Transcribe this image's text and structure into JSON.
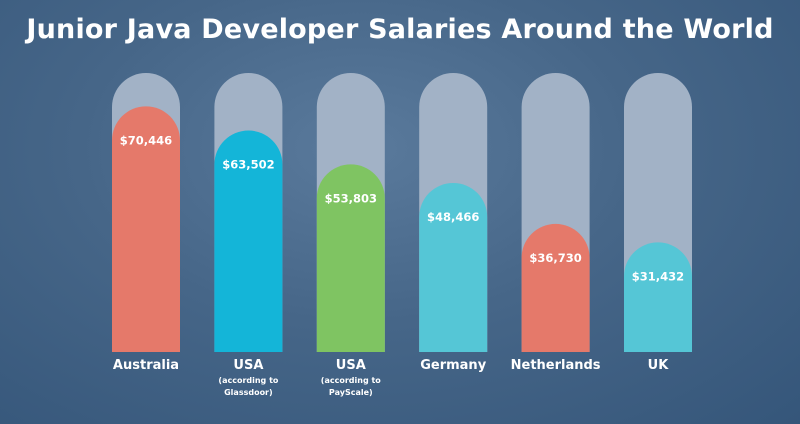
{
  "chart_data": {
    "type": "bar",
    "title": "Junior Java Developer Salaries Around the World",
    "categories": [
      {
        "label": "Australia",
        "sublines": []
      },
      {
        "label": "USA",
        "sublines": [
          "(according to",
          "Glassdoor)"
        ]
      },
      {
        "label": "USA",
        "sublines": [
          "(according to",
          "PayScale)"
        ]
      },
      {
        "label": "Germany",
        "sublines": []
      },
      {
        "label": "Netherlands",
        "sublines": []
      },
      {
        "label": "UK",
        "sublines": []
      }
    ],
    "values": [
      70446,
      63502,
      53803,
      48466,
      36730,
      31432
    ],
    "value_labels": [
      "$70,446",
      "$63,502",
      "$53,803",
      "$48,466",
      "$36,730",
      "$31,432"
    ],
    "ylim": [
      0,
      80000
    ],
    "grid": false,
    "colors": {
      "track": "#a2b2c6",
      "bars": [
        "#e5796a",
        "#14b5d8",
        "#7fc462",
        "#55c6d6",
        "#e5796a",
        "#55c6d6"
      ]
    }
  }
}
